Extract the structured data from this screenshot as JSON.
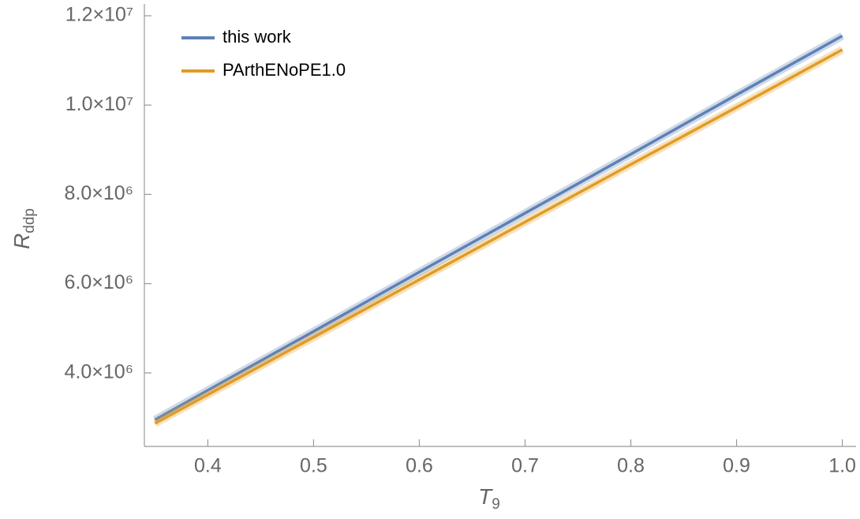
{
  "chart_data": {
    "type": "line",
    "x_label": {
      "main": "T",
      "sub": "9"
    },
    "y_label": {
      "main": "R",
      "sub": "ddp"
    },
    "x": [
      0.35,
      0.5,
      0.6,
      0.7,
      0.8,
      0.9,
      1.0
    ],
    "series": [
      {
        "name": "this work",
        "color": "#5e81b5",
        "values": [
          2950000,
          4930000,
          6260000,
          7580000,
          8900000,
          10230000,
          11550000
        ]
      },
      {
        "name": "PArthENoPE1.0",
        "color": "#e19c24",
        "values": [
          2870000,
          4800000,
          6090000,
          7380000,
          8670000,
          9950000,
          11240000
        ]
      }
    ],
    "xlim": [
      0.34,
      1.013
    ],
    "ylim": [
      2354000,
      12265000
    ],
    "xticks": [
      0.4,
      0.5,
      0.6,
      0.7,
      0.8,
      0.9,
      {
        "value": 1.0,
        "label": "1.0"
      }
    ],
    "yticks": [
      {
        "value": 4000000,
        "label": "4.0×10⁶"
      },
      {
        "value": 6000000,
        "label": "6.0×10⁶"
      },
      {
        "value": 8000000,
        "label": "8.0×10⁶"
      },
      {
        "value": 10000000,
        "label": "1.0×10⁷"
      },
      {
        "value": 12000000,
        "label": "1.2×10⁷"
      }
    ],
    "legend": "top-left"
  }
}
